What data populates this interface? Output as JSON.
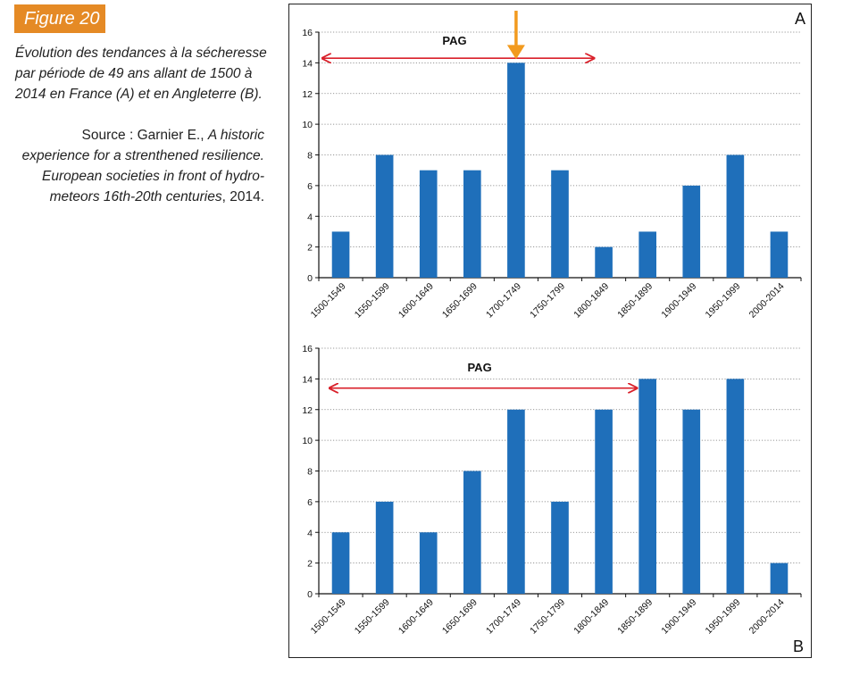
{
  "figure_label": "Figure 20",
  "caption": "Évolution des tendances à la sécheresse par période de 49 ans allant de 1500 à 2014 en France (A) et en Angleterre (B).",
  "source": {
    "prefix": "Source : Garnier E., ",
    "title": "A historic experience for a strenthened resilience. European societies in front of hydro-meteors 16th-20th centuries",
    "suffix": ", 2014."
  },
  "colors": {
    "bar": "#1f6fba",
    "pag_arrow": "#d9202a",
    "highlight_arrow": "#f29a1e",
    "badge": "#e58a25"
  },
  "chart_data": [
    {
      "type": "bar",
      "panel": "A",
      "categories": [
        "1500-1549",
        "1550-1599",
        "1600-1649",
        "1650-1699",
        "1700-1749",
        "1750-1799",
        "1800-1849",
        "1850-1899",
        "1900-1949",
        "1950-1999",
        "2000-2014"
      ],
      "values": [
        3,
        8,
        7,
        7,
        14,
        7,
        2,
        3,
        6,
        8,
        3
      ],
      "ylim": [
        0,
        16
      ],
      "yticks": [
        0,
        2,
        4,
        6,
        8,
        10,
        12,
        14,
        16
      ],
      "grid": "dotted-horizontal",
      "annotations": [
        {
          "label": "PAG",
          "type": "double-arrow",
          "from_category": "1500-1549",
          "to_category": "1800-1849",
          "y": 14.3
        },
        {
          "type": "down-arrow",
          "category": "1700-1749"
        }
      ]
    },
    {
      "type": "bar",
      "panel": "B",
      "categories": [
        "1500-1549",
        "1550-1599",
        "1600-1649",
        "1650-1699",
        "1700-1749",
        "1750-1799",
        "1800-1849",
        "1850-1899",
        "1900-1949",
        "1950-1999",
        "2000-2014"
      ],
      "values": [
        4,
        6,
        4,
        8,
        12,
        6,
        12,
        14,
        12,
        14,
        2
      ],
      "ylim": [
        0,
        16
      ],
      "yticks": [
        0,
        2,
        4,
        6,
        8,
        10,
        12,
        14,
        16
      ],
      "grid": "dotted-horizontal",
      "annotations": [
        {
          "label": "PAG",
          "type": "double-arrow",
          "from_category": "1500-1549",
          "to_category": "1850-1899",
          "y": 13.4
        }
      ]
    }
  ]
}
